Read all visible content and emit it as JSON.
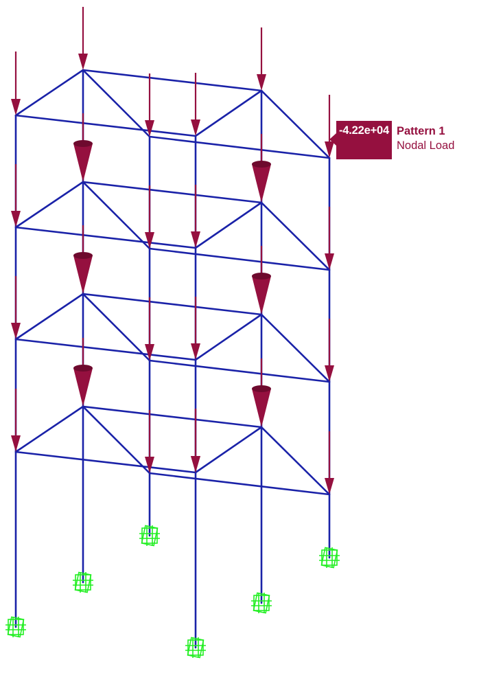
{
  "tooltip": {
    "value": "-4.22e+04",
    "pattern": "Pattern 1",
    "load_type": "Nodal Load"
  },
  "colors": {
    "frame": "#1a22a8",
    "load": "#95103f",
    "support": "#22ee22",
    "background": "#ffffff"
  },
  "model": {
    "stories": 4,
    "column_lines": 6,
    "supports": 6,
    "support_icon": "fixed-support-icon",
    "load_icon": "nodal-load-arrow-icon"
  }
}
